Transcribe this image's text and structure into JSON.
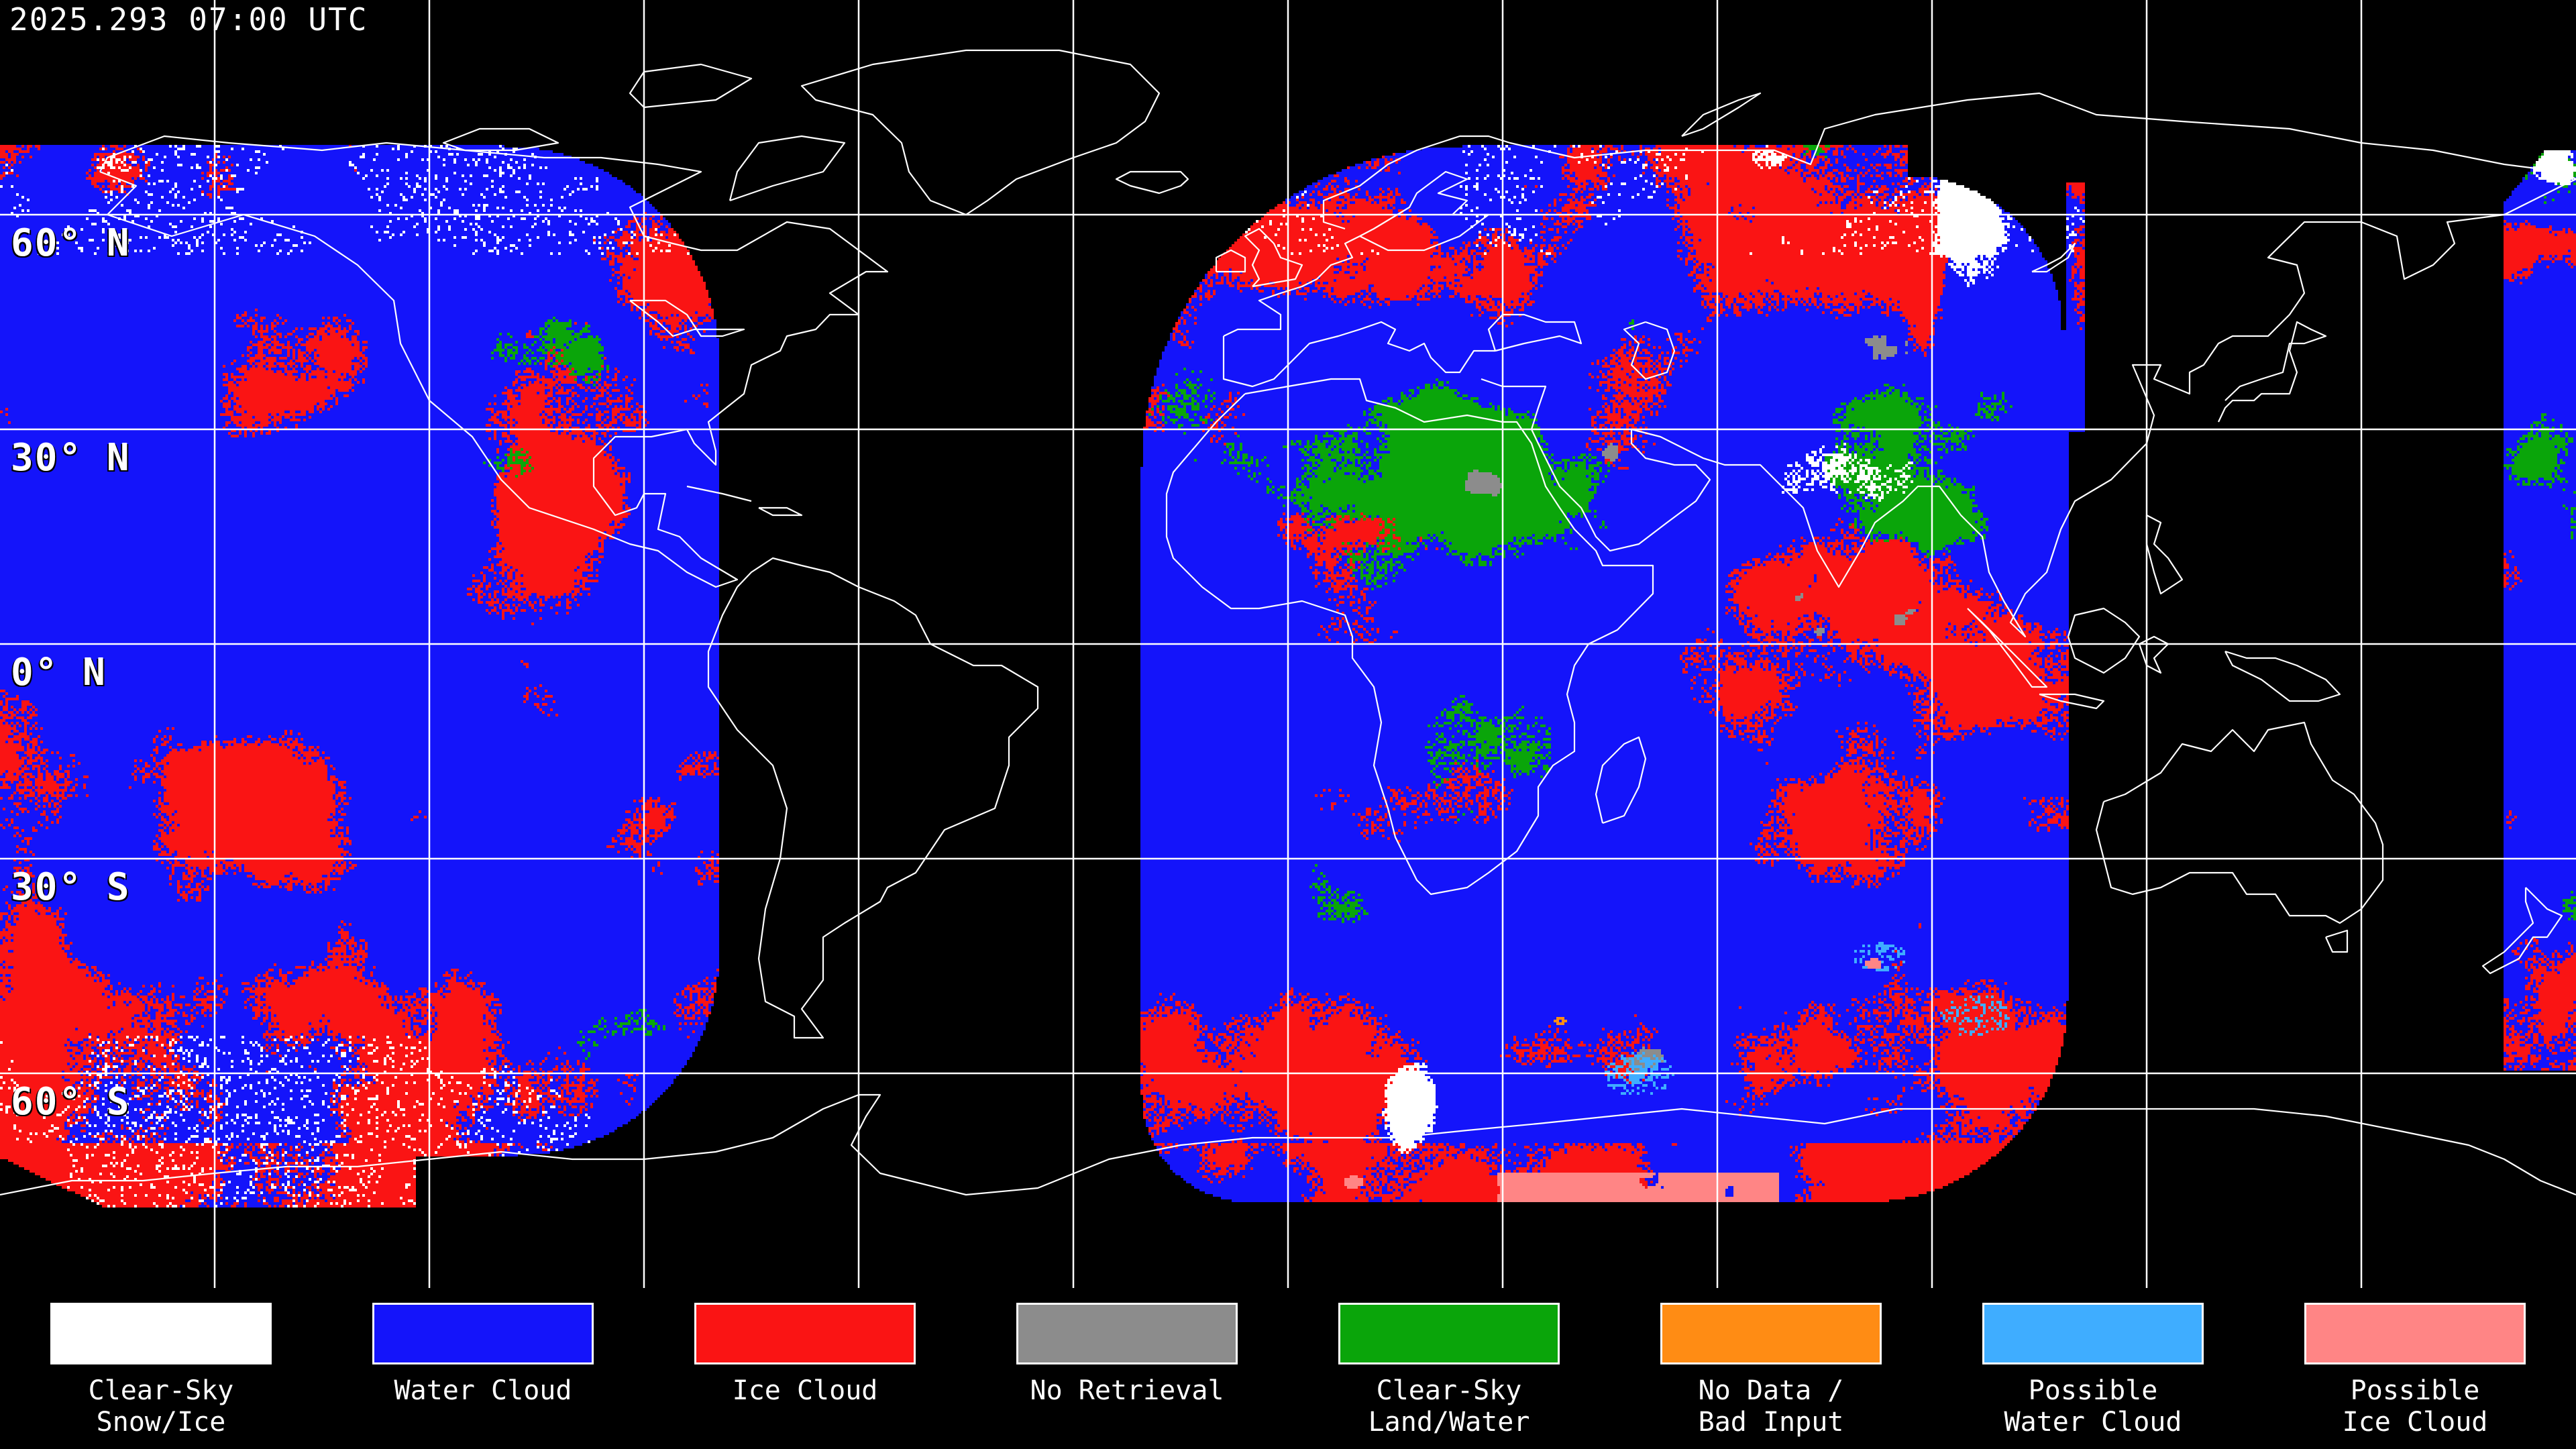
{
  "header": {
    "timestamp": "2025.293 07:00 UTC"
  },
  "map": {
    "projection": "equirectangular",
    "grid_interval_degrees": 30,
    "latitude_labels": [
      {
        "text": "60° N",
        "lat": 60
      },
      {
        "text": "30° N",
        "lat": 30
      },
      {
        "text": "0° N",
        "lat": 0
      },
      {
        "text": "30° S",
        "lat": -30
      },
      {
        "text": "60° S",
        "lat": -60
      }
    ],
    "colors": {
      "background": "#000000",
      "graticule": "#ffffff",
      "coastline": "#ffffff",
      "label_text": "#ffffff"
    }
  },
  "legend": {
    "items": [
      {
        "name": "clear-sky-snow-ice",
        "label_lines": [
          "Clear-Sky",
          "Snow/Ice"
        ],
        "color": "#ffffff"
      },
      {
        "name": "water-cloud",
        "label_lines": [
          "Water Cloud"
        ],
        "color": "#1414fa"
      },
      {
        "name": "ice-cloud",
        "label_lines": [
          "Ice Cloud"
        ],
        "color": "#fa1414"
      },
      {
        "name": "no-retrieval",
        "label_lines": [
          "No Retrieval"
        ],
        "color": "#8c8c8c"
      },
      {
        "name": "clear-sky-land-water",
        "label_lines": [
          "Clear-Sky",
          "Land/Water"
        ],
        "color": "#0aa50a"
      },
      {
        "name": "no-data-bad-input",
        "label_lines": [
          "No Data /",
          "Bad Input"
        ],
        "color": "#ff8c14"
      },
      {
        "name": "possible-water-cloud",
        "label_lines": [
          "Possible",
          "Water Cloud"
        ],
        "color": "#3fadff"
      },
      {
        "name": "possible-ice-cloud",
        "label_lines": [
          "Possible",
          "Ice Cloud"
        ],
        "color": "#ff8585"
      }
    ]
  }
}
